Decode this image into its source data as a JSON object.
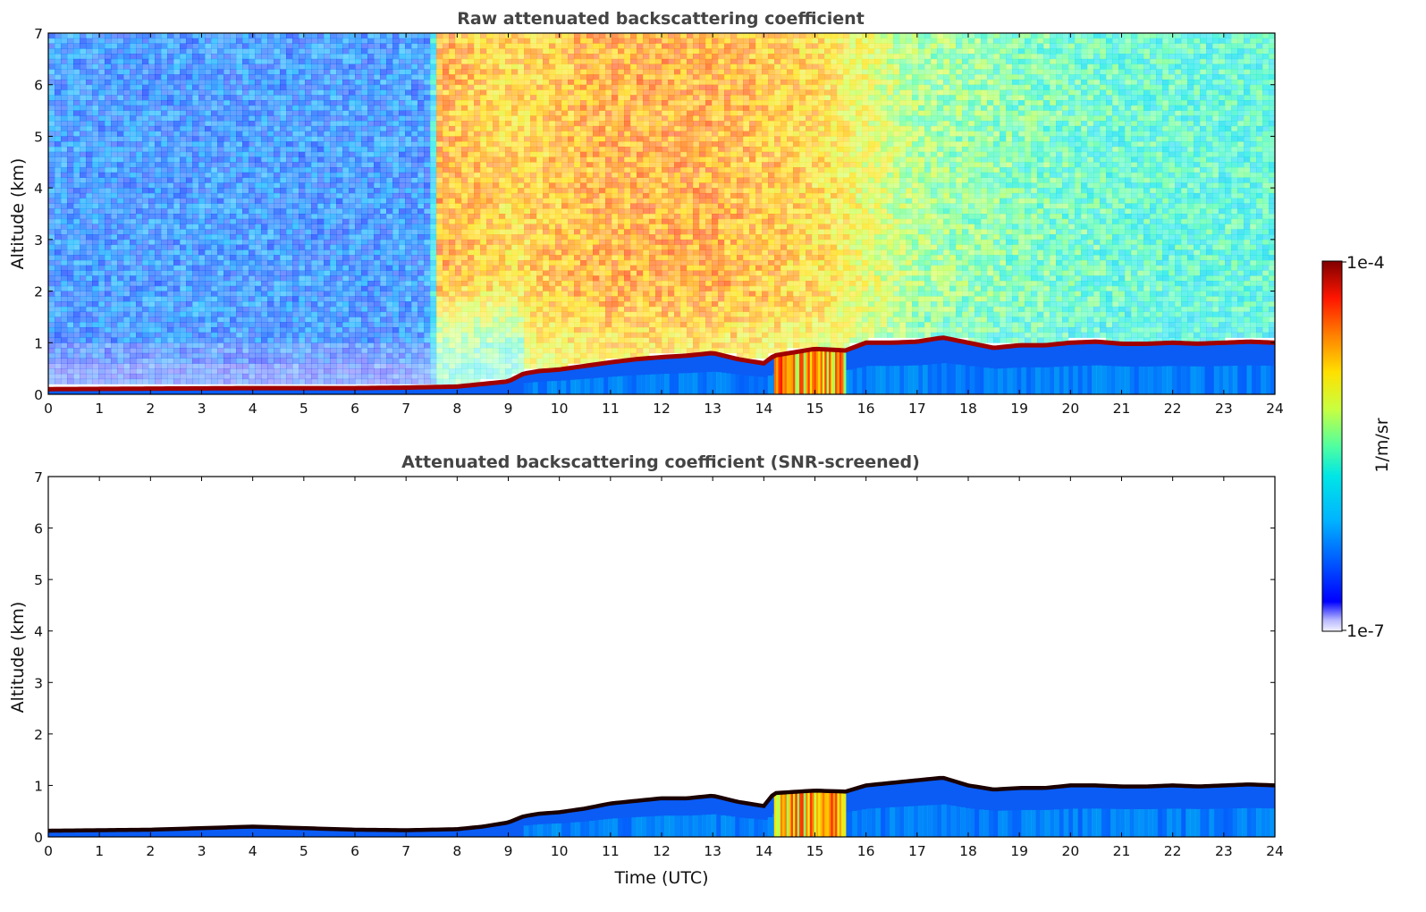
{
  "chart_data": [
    {
      "type": "heatmap",
      "title": "Raw attenuated backscattering coefficient",
      "xlabel": "",
      "ylabel": "Altitude (km)",
      "xlim": [
        0,
        24
      ],
      "ylim": [
        0,
        7
      ],
      "xticks": [
        "0",
        "1",
        "2",
        "3",
        "4",
        "5",
        "6",
        "7",
        "8",
        "9",
        "10",
        "11",
        "12",
        "13",
        "14",
        "15",
        "16",
        "17",
        "18",
        "19",
        "20",
        "21",
        "22",
        "23",
        "24"
      ],
      "yticks": [
        "0",
        "1",
        "2",
        "3",
        "4",
        "5",
        "6",
        "7"
      ],
      "grid": false,
      "colorscale": "jet",
      "boundary_layer_top_km": {
        "time_utc": [
          0,
          2,
          4,
          6,
          7,
          8,
          8.5,
          9,
          9.3,
          9.6,
          10,
          10.5,
          11,
          11.5,
          12,
          12.5,
          13,
          13.5,
          14,
          14.2,
          15,
          15.6,
          16,
          16.5,
          17,
          17.5,
          18,
          18.5,
          19,
          19.5,
          20,
          20.5,
          21,
          21.5,
          22,
          22.5,
          23,
          23.5,
          24
        ],
        "altitude": [
          0.1,
          0.11,
          0.12,
          0.12,
          0.13,
          0.15,
          0.2,
          0.25,
          0.4,
          0.45,
          0.48,
          0.55,
          0.62,
          0.68,
          0.72,
          0.75,
          0.8,
          0.68,
          0.6,
          0.75,
          0.88,
          0.85,
          1.0,
          1.0,
          1.02,
          1.1,
          1.0,
          0.9,
          0.95,
          0.95,
          1.0,
          1.02,
          0.98,
          0.98,
          1.0,
          0.98,
          1.0,
          1.02,
          1.0
        ]
      },
      "background": {
        "time_utc": [
          0,
          7.5,
          7.6,
          9,
          11,
          13,
          15,
          17,
          19,
          21,
          23,
          24
        ],
        "level_0_to_1": [
          0.22,
          0.22,
          0.78,
          0.72,
          0.78,
          0.78,
          0.72,
          0.55,
          0.5,
          0.46,
          0.45,
          0.45
        ]
      }
    },
    {
      "type": "heatmap",
      "title": "Attenuated backscattering coefficient (SNR-screened)",
      "xlabel": "Time (UTC)",
      "ylabel": "Altitude (km)",
      "xlim": [
        0,
        24
      ],
      "ylim": [
        0,
        7
      ],
      "xticks": [
        "0",
        "1",
        "2",
        "3",
        "4",
        "5",
        "6",
        "7",
        "8",
        "9",
        "10",
        "11",
        "12",
        "13",
        "14",
        "15",
        "16",
        "17",
        "18",
        "19",
        "20",
        "21",
        "22",
        "23",
        "24"
      ],
      "yticks": [
        "0",
        "1",
        "2",
        "3",
        "4",
        "5",
        "6",
        "7"
      ],
      "grid": false,
      "colorscale": "jet",
      "boundary_layer_top_km": {
        "time_utc": [
          0,
          2,
          4,
          6,
          7,
          8,
          8.5,
          9,
          9.3,
          9.6,
          10,
          10.5,
          11,
          11.5,
          12,
          12.5,
          13,
          13.5,
          14,
          14.2,
          15,
          15.6,
          16,
          16.5,
          17,
          17.5,
          18,
          18.5,
          19,
          19.5,
          20,
          20.5,
          21,
          21.5,
          22,
          22.5,
          23,
          23.5,
          24
        ],
        "altitude": [
          0.12,
          0.14,
          0.2,
          0.14,
          0.13,
          0.15,
          0.2,
          0.28,
          0.4,
          0.45,
          0.48,
          0.55,
          0.65,
          0.7,
          0.75,
          0.75,
          0.8,
          0.68,
          0.6,
          0.85,
          0.9,
          0.88,
          1.0,
          1.05,
          1.1,
          1.15,
          1.0,
          0.92,
          0.95,
          0.95,
          1.0,
          1.0,
          0.98,
          0.98,
          1.0,
          0.98,
          1.0,
          1.02,
          1.0
        ]
      }
    }
  ],
  "colorbar": {
    "max_label": "1e-4",
    "min_label": "1e-7",
    "unit_label": "1/m/sr",
    "max_value": 0.0001,
    "min_value": 1e-07,
    "scale": "log"
  }
}
